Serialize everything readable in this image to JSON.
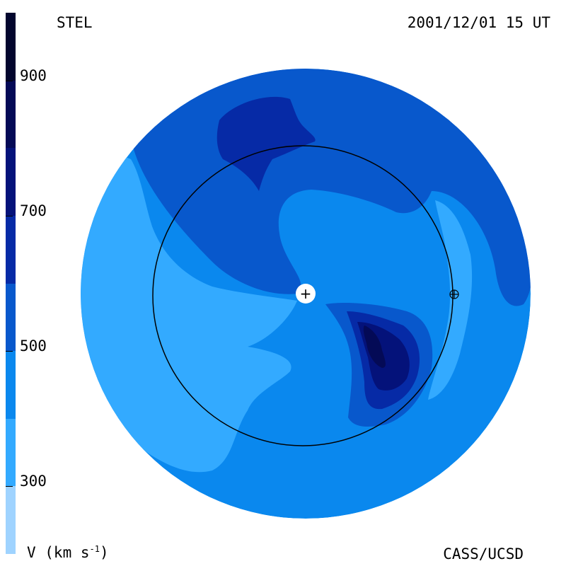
{
  "header": {
    "observatory": "STEL",
    "timestamp": "2001/12/01 15 UT"
  },
  "footer": {
    "units_prefix": "V (km s",
    "units_exp": "-1",
    "units_suffix": ")",
    "credit": "CASS/UCSD"
  },
  "colorbar": {
    "range": [
      200,
      1000
    ],
    "ticks": [
      {
        "label": "900",
        "value": 900
      },
      {
        "label": "700",
        "value": 700
      },
      {
        "label": "500",
        "value": 500
      },
      {
        "label": "300",
        "value": 300
      }
    ],
    "bands": [
      {
        "from": 200,
        "to": 300,
        "color": "#9fd3ff"
      },
      {
        "from": 300,
        "to": 400,
        "color": "#33aaff"
      },
      {
        "from": 400,
        "to": 500,
        "color": "#0a88ee"
      },
      {
        "from": 500,
        "to": 600,
        "color": "#0858cc"
      },
      {
        "from": 600,
        "to": 700,
        "color": "#062aa6"
      },
      {
        "from": 700,
        "to": 800,
        "color": "#04127a"
      },
      {
        "from": 800,
        "to": 900,
        "color": "#040a56"
      },
      {
        "from": 900,
        "to": 1000,
        "color": "#03062e"
      }
    ]
  },
  "map": {
    "sun_symbol": "+",
    "earth_symbol": "⊕"
  }
}
